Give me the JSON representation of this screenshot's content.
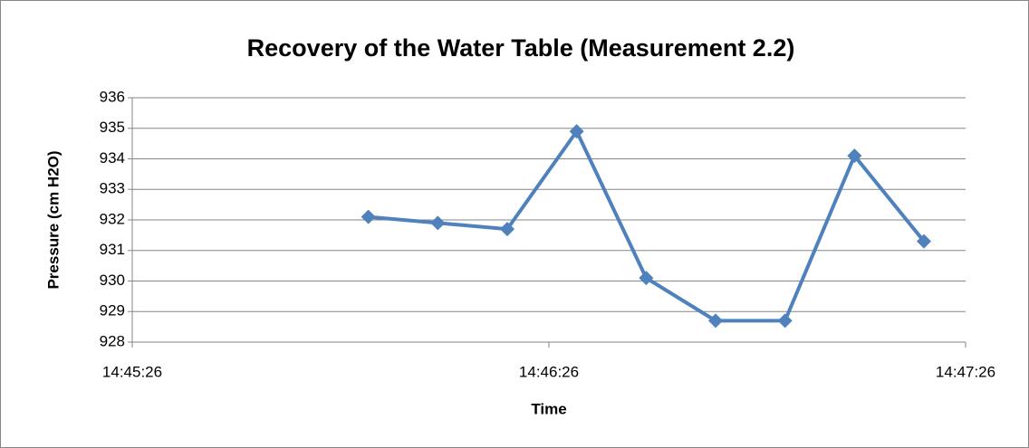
{
  "chart_data": {
    "type": "line",
    "title": "Recovery of the Water Table (Measurement 2.2)",
    "xlabel": "Time",
    "ylabel": "Pressure (cm H2O)",
    "x": [
      "14:46:00",
      "14:46:10",
      "14:46:20",
      "14:46:30",
      "14:46:40",
      "14:46:50",
      "14:47:00",
      "14:47:10",
      "14:47:20"
    ],
    "series": [
      {
        "name": "Pressure",
        "color": "#4f81bd",
        "values": [
          932.1,
          931.9,
          931.7,
          934.9,
          930.1,
          928.7,
          928.7,
          934.1,
          931.3
        ]
      }
    ],
    "xlim": [
      "14:45:26",
      "14:47:26"
    ],
    "xticks": [
      "14:45:26",
      "14:46:26",
      "14:47:26"
    ],
    "ylim": [
      928,
      936
    ],
    "yticks": [
      928,
      929,
      930,
      931,
      932,
      933,
      934,
      935,
      936
    ],
    "grid": true
  }
}
